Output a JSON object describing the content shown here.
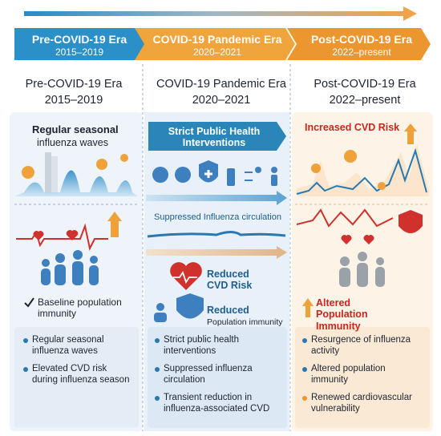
{
  "timeline": [
    {
      "title": "Pre-COVID-19 Era",
      "period": "2015–2019"
    },
    {
      "title": "COVID-19 Pandemic Era",
      "period": "2020–2021"
    },
    {
      "title": "Post-COVID-19 Era",
      "period": "2022–present"
    }
  ],
  "columns": [
    {
      "title": "Pre-COVID-19 Era",
      "period": "2015–2019"
    },
    {
      "title": "COVID-19 Pandemic Era",
      "period": "2020–2021"
    },
    {
      "title": "Post-COVID-19 Era",
      "period": "2022–present"
    }
  ],
  "pre_covid": {
    "label_bold": "Regular seasonal",
    "label": "influenza waves",
    "immunity": "Baseline population immunity",
    "bullets": [
      "Regular seasonal influenza waves",
      "Elevated CVD risk during influenza season"
    ]
  },
  "pandemic": {
    "banner": "Strict Public Health Interventions",
    "circulation": "Suppressed Influenza circulation",
    "cvd": "Reduced CVD Risk",
    "immunity_bold": "Reduced",
    "immunity": "Population immunity",
    "bullets": [
      "Strict public health interventions",
      "Suppressed influenza circulation",
      "Transient reduction in influenza-associated CVD"
    ]
  },
  "post_covid": {
    "cvd": "Increased CVD Risk",
    "immunity": "Altered Population Immunity",
    "bullets": [
      "Resurgence of influenza activity",
      "Altered population immunity",
      "Renewed cardiovascular vulnerability"
    ]
  }
}
